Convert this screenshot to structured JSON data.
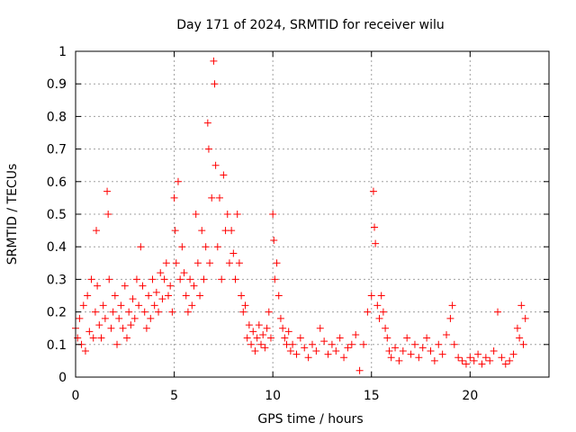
{
  "chart_data": {
    "type": "scatter",
    "title": "Day 171 of 2024, SRMTID for receiver wilu",
    "xlabel": "GPS time / hours",
    "ylabel": "SRMTID / TECUs",
    "xlim": [
      0,
      24
    ],
    "ylim": [
      0,
      1
    ],
    "xticks": [
      0,
      5,
      10,
      15,
      20
    ],
    "xtick_labels": [
      "0",
      "5",
      "10",
      "15",
      "20"
    ],
    "yticks": [
      0,
      0.1,
      0.2,
      0.3,
      0.4,
      0.5,
      0.6,
      0.7,
      0.8,
      0.9,
      1
    ],
    "ytick_labels": [
      "0",
      "0.1",
      "0.2",
      "0.3",
      "0.4",
      "0.5",
      "0.6",
      "0.7",
      "0.8",
      "0.9",
      "1"
    ],
    "grid": true,
    "marker": "+",
    "marker_color": "#ff0000",
    "series": [
      {
        "name": "SRMTID",
        "points": [
          [
            0.0,
            0.15
          ],
          [
            0.1,
            0.12
          ],
          [
            0.2,
            0.18
          ],
          [
            0.3,
            0.1
          ],
          [
            0.4,
            0.22
          ],
          [
            0.5,
            0.08
          ],
          [
            0.6,
            0.25
          ],
          [
            0.7,
            0.14
          ],
          [
            0.8,
            0.3
          ],
          [
            0.9,
            0.12
          ],
          [
            1.0,
            0.2
          ],
          [
            1.05,
            0.45
          ],
          [
            1.1,
            0.28
          ],
          [
            1.2,
            0.16
          ],
          [
            1.3,
            0.12
          ],
          [
            1.4,
            0.22
          ],
          [
            1.5,
            0.18
          ],
          [
            1.6,
            0.57
          ],
          [
            1.65,
            0.5
          ],
          [
            1.7,
            0.3
          ],
          [
            1.8,
            0.15
          ],
          [
            1.9,
            0.2
          ],
          [
            2.0,
            0.25
          ],
          [
            2.1,
            0.1
          ],
          [
            2.2,
            0.18
          ],
          [
            2.3,
            0.22
          ],
          [
            2.4,
            0.15
          ],
          [
            2.5,
            0.28
          ],
          [
            2.6,
            0.12
          ],
          [
            2.7,
            0.2
          ],
          [
            2.8,
            0.16
          ],
          [
            2.9,
            0.24
          ],
          [
            3.0,
            0.18
          ],
          [
            3.1,
            0.3
          ],
          [
            3.2,
            0.22
          ],
          [
            3.3,
            0.4
          ],
          [
            3.4,
            0.28
          ],
          [
            3.5,
            0.2
          ],
          [
            3.6,
            0.15
          ],
          [
            3.7,
            0.25
          ],
          [
            3.8,
            0.18
          ],
          [
            3.9,
            0.3
          ],
          [
            4.0,
            0.22
          ],
          [
            4.1,
            0.26
          ],
          [
            4.2,
            0.2
          ],
          [
            4.3,
            0.32
          ],
          [
            4.4,
            0.24
          ],
          [
            4.5,
            0.3
          ],
          [
            4.6,
            0.35
          ],
          [
            4.7,
            0.25
          ],
          [
            4.8,
            0.28
          ],
          [
            4.9,
            0.2
          ],
          [
            5.0,
            0.55
          ],
          [
            5.05,
            0.45
          ],
          [
            5.1,
            0.35
          ],
          [
            5.2,
            0.6
          ],
          [
            5.3,
            0.3
          ],
          [
            5.4,
            0.4
          ],
          [
            5.5,
            0.32
          ],
          [
            5.6,
            0.25
          ],
          [
            5.7,
            0.2
          ],
          [
            5.8,
            0.3
          ],
          [
            5.9,
            0.22
          ],
          [
            6.0,
            0.28
          ],
          [
            6.1,
            0.5
          ],
          [
            6.2,
            0.35
          ],
          [
            6.3,
            0.25
          ],
          [
            6.4,
            0.45
          ],
          [
            6.5,
            0.3
          ],
          [
            6.6,
            0.4
          ],
          [
            6.7,
            0.78
          ],
          [
            6.75,
            0.7
          ],
          [
            6.8,
            0.35
          ],
          [
            6.9,
            0.55
          ],
          [
            7.0,
            0.97
          ],
          [
            7.05,
            0.9
          ],
          [
            7.1,
            0.65
          ],
          [
            7.2,
            0.4
          ],
          [
            7.3,
            0.55
          ],
          [
            7.4,
            0.3
          ],
          [
            7.5,
            0.62
          ],
          [
            7.6,
            0.45
          ],
          [
            7.7,
            0.5
          ],
          [
            7.8,
            0.35
          ],
          [
            7.9,
            0.45
          ],
          [
            8.0,
            0.38
          ],
          [
            8.1,
            0.3
          ],
          [
            8.2,
            0.5
          ],
          [
            8.3,
            0.35
          ],
          [
            8.4,
            0.25
          ],
          [
            8.5,
            0.2
          ],
          [
            8.6,
            0.22
          ],
          [
            8.7,
            0.12
          ],
          [
            8.8,
            0.16
          ],
          [
            8.9,
            0.1
          ],
          [
            9.0,
            0.14
          ],
          [
            9.1,
            0.08
          ],
          [
            9.2,
            0.12
          ],
          [
            9.3,
            0.16
          ],
          [
            9.4,
            0.1
          ],
          [
            9.5,
            0.13
          ],
          [
            9.6,
            0.09
          ],
          [
            9.7,
            0.15
          ],
          [
            9.8,
            0.2
          ],
          [
            9.9,
            0.12
          ],
          [
            10.0,
            0.5
          ],
          [
            10.05,
            0.42
          ],
          [
            10.1,
            0.3
          ],
          [
            10.2,
            0.35
          ],
          [
            10.3,
            0.25
          ],
          [
            10.4,
            0.18
          ],
          [
            10.5,
            0.15
          ],
          [
            10.6,
            0.12
          ],
          [
            10.7,
            0.1
          ],
          [
            10.8,
            0.14
          ],
          [
            10.9,
            0.08
          ],
          [
            11.0,
            0.1
          ],
          [
            11.2,
            0.07
          ],
          [
            11.4,
            0.12
          ],
          [
            11.6,
            0.09
          ],
          [
            11.8,
            0.06
          ],
          [
            12.0,
            0.1
          ],
          [
            12.2,
            0.08
          ],
          [
            12.4,
            0.15
          ],
          [
            12.6,
            0.11
          ],
          [
            12.8,
            0.07
          ],
          [
            13.0,
            0.1
          ],
          [
            13.2,
            0.08
          ],
          [
            13.4,
            0.12
          ],
          [
            13.6,
            0.06
          ],
          [
            13.8,
            0.09
          ],
          [
            14.0,
            0.1
          ],
          [
            14.2,
            0.13
          ],
          [
            14.4,
            0.02
          ],
          [
            14.6,
            0.1
          ],
          [
            14.8,
            0.2
          ],
          [
            15.0,
            0.25
          ],
          [
            15.1,
            0.57
          ],
          [
            15.15,
            0.46
          ],
          [
            15.2,
            0.41
          ],
          [
            15.3,
            0.22
          ],
          [
            15.4,
            0.18
          ],
          [
            15.5,
            0.25
          ],
          [
            15.6,
            0.2
          ],
          [
            15.7,
            0.15
          ],
          [
            15.8,
            0.12
          ],
          [
            15.9,
            0.08
          ],
          [
            16.0,
            0.06
          ],
          [
            16.2,
            0.09
          ],
          [
            16.4,
            0.05
          ],
          [
            16.6,
            0.08
          ],
          [
            16.8,
            0.12
          ],
          [
            17.0,
            0.07
          ],
          [
            17.2,
            0.1
          ],
          [
            17.4,
            0.06
          ],
          [
            17.6,
            0.09
          ],
          [
            17.8,
            0.12
          ],
          [
            18.0,
            0.08
          ],
          [
            18.2,
            0.05
          ],
          [
            18.4,
            0.1
          ],
          [
            18.6,
            0.07
          ],
          [
            18.8,
            0.13
          ],
          [
            19.0,
            0.18
          ],
          [
            19.1,
            0.22
          ],
          [
            19.2,
            0.1
          ],
          [
            19.4,
            0.06
          ],
          [
            19.6,
            0.05
          ],
          [
            19.8,
            0.04
          ],
          [
            20.0,
            0.06
          ],
          [
            20.2,
            0.05
          ],
          [
            20.4,
            0.07
          ],
          [
            20.6,
            0.04
          ],
          [
            20.8,
            0.06
          ],
          [
            21.0,
            0.05
          ],
          [
            21.2,
            0.08
          ],
          [
            21.4,
            0.2
          ],
          [
            21.6,
            0.06
          ],
          [
            21.8,
            0.04
          ],
          [
            22.0,
            0.05
          ],
          [
            22.2,
            0.07
          ],
          [
            22.4,
            0.15
          ],
          [
            22.5,
            0.12
          ],
          [
            22.6,
            0.22
          ],
          [
            22.7,
            0.1
          ],
          [
            22.8,
            0.18
          ]
        ]
      }
    ]
  }
}
